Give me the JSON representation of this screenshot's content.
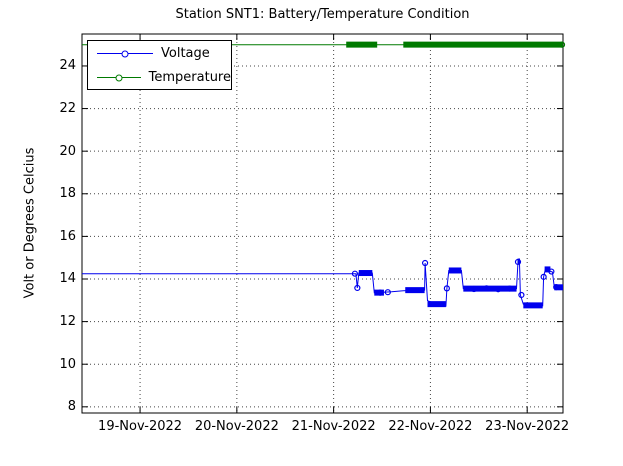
{
  "chart_data": {
    "type": "line",
    "title": "Station SNT1: Battery/Temperature Condition",
    "xlabel": "",
    "ylabel": "Volt or Degrees Celcius",
    "x_axis": {
      "unit": "days since 19-Nov-2022 00:00",
      "tick_positions": [
        0,
        1,
        2,
        3,
        4
      ],
      "tick_labels": [
        "19-Nov-2022",
        "20-Nov-2022",
        "21-Nov-2022",
        "22-Nov-2022",
        "23-Nov-2022"
      ],
      "lim": [
        -0.6,
        4.37
      ]
    },
    "y_axis": {
      "ticks": [
        8,
        10,
        12,
        14,
        16,
        18,
        20,
        22,
        24
      ],
      "lim": [
        7.71,
        25.5
      ]
    },
    "grid": {
      "style": "dotted",
      "color": "#454545"
    },
    "legend": {
      "position": "northwest",
      "entries": [
        "Voltage",
        "Temperature"
      ]
    },
    "series": [
      {
        "name": "Voltage",
        "color": "#0000EE",
        "marker": "o",
        "line": [
          [
            -0.6,
            14.25
          ],
          [
            2.23,
            14.25
          ],
          [
            2.245,
            13.58
          ],
          [
            2.26,
            14.28
          ],
          [
            2.4,
            14.28
          ],
          [
            2.42,
            13.35
          ],
          [
            2.6,
            13.4
          ],
          [
            2.72,
            13.45
          ],
          [
            2.94,
            13.48
          ],
          [
            2.945,
            14.75
          ],
          [
            2.97,
            12.98
          ],
          [
            3.05,
            12.85
          ],
          [
            3.16,
            12.73
          ],
          [
            3.17,
            13.56
          ],
          [
            3.19,
            14.4
          ],
          [
            3.32,
            14.4
          ],
          [
            3.34,
            13.55
          ],
          [
            3.89,
            13.55
          ],
          [
            3.905,
            14.8
          ],
          [
            3.92,
            14.9
          ],
          [
            3.93,
            13.25
          ],
          [
            3.96,
            12.82
          ],
          [
            4.16,
            12.74
          ],
          [
            4.17,
            14.1
          ],
          [
            4.19,
            14.5
          ],
          [
            4.22,
            14.4
          ],
          [
            4.26,
            14.33
          ],
          [
            4.28,
            13.62
          ],
          [
            4.37,
            13.6
          ]
        ],
        "marker_runs": [
          [
            2.26,
            2.4,
            14.28
          ],
          [
            2.42,
            2.52,
            13.36
          ],
          [
            2.74,
            2.94,
            13.48
          ],
          [
            2.97,
            3.16,
            12.82
          ],
          [
            3.19,
            3.32,
            14.4
          ],
          [
            3.34,
            3.89,
            13.55
          ],
          [
            3.9,
            3.925,
            14.82
          ],
          [
            3.96,
            4.16,
            12.76
          ],
          [
            4.18,
            4.24,
            14.45
          ],
          [
            4.28,
            4.37,
            13.61
          ]
        ],
        "markers": [
          [
            2.22,
            14.25
          ],
          [
            2.245,
            13.58
          ],
          [
            2.48,
            13.36
          ],
          [
            2.56,
            13.38
          ],
          [
            2.945,
            14.75
          ],
          [
            3.17,
            13.56
          ],
          [
            3.45,
            13.53
          ],
          [
            3.58,
            13.56
          ],
          [
            3.7,
            13.52
          ],
          [
            3.82,
            13.55
          ],
          [
            3.905,
            14.8
          ],
          [
            3.94,
            13.25
          ],
          [
            4.17,
            14.1
          ],
          [
            4.25,
            14.35
          ],
          [
            4.3,
            13.62
          ]
        ]
      },
      {
        "name": "Temperature",
        "color": "#007A00",
        "marker": "o",
        "line": [
          [
            -0.6,
            25
          ],
          [
            4.37,
            25
          ]
        ],
        "marker_runs": [
          [
            2.13,
            2.45,
            25
          ],
          [
            2.72,
            4.37,
            25
          ]
        ],
        "markers": [
          [
            4.36,
            25
          ]
        ]
      }
    ]
  }
}
